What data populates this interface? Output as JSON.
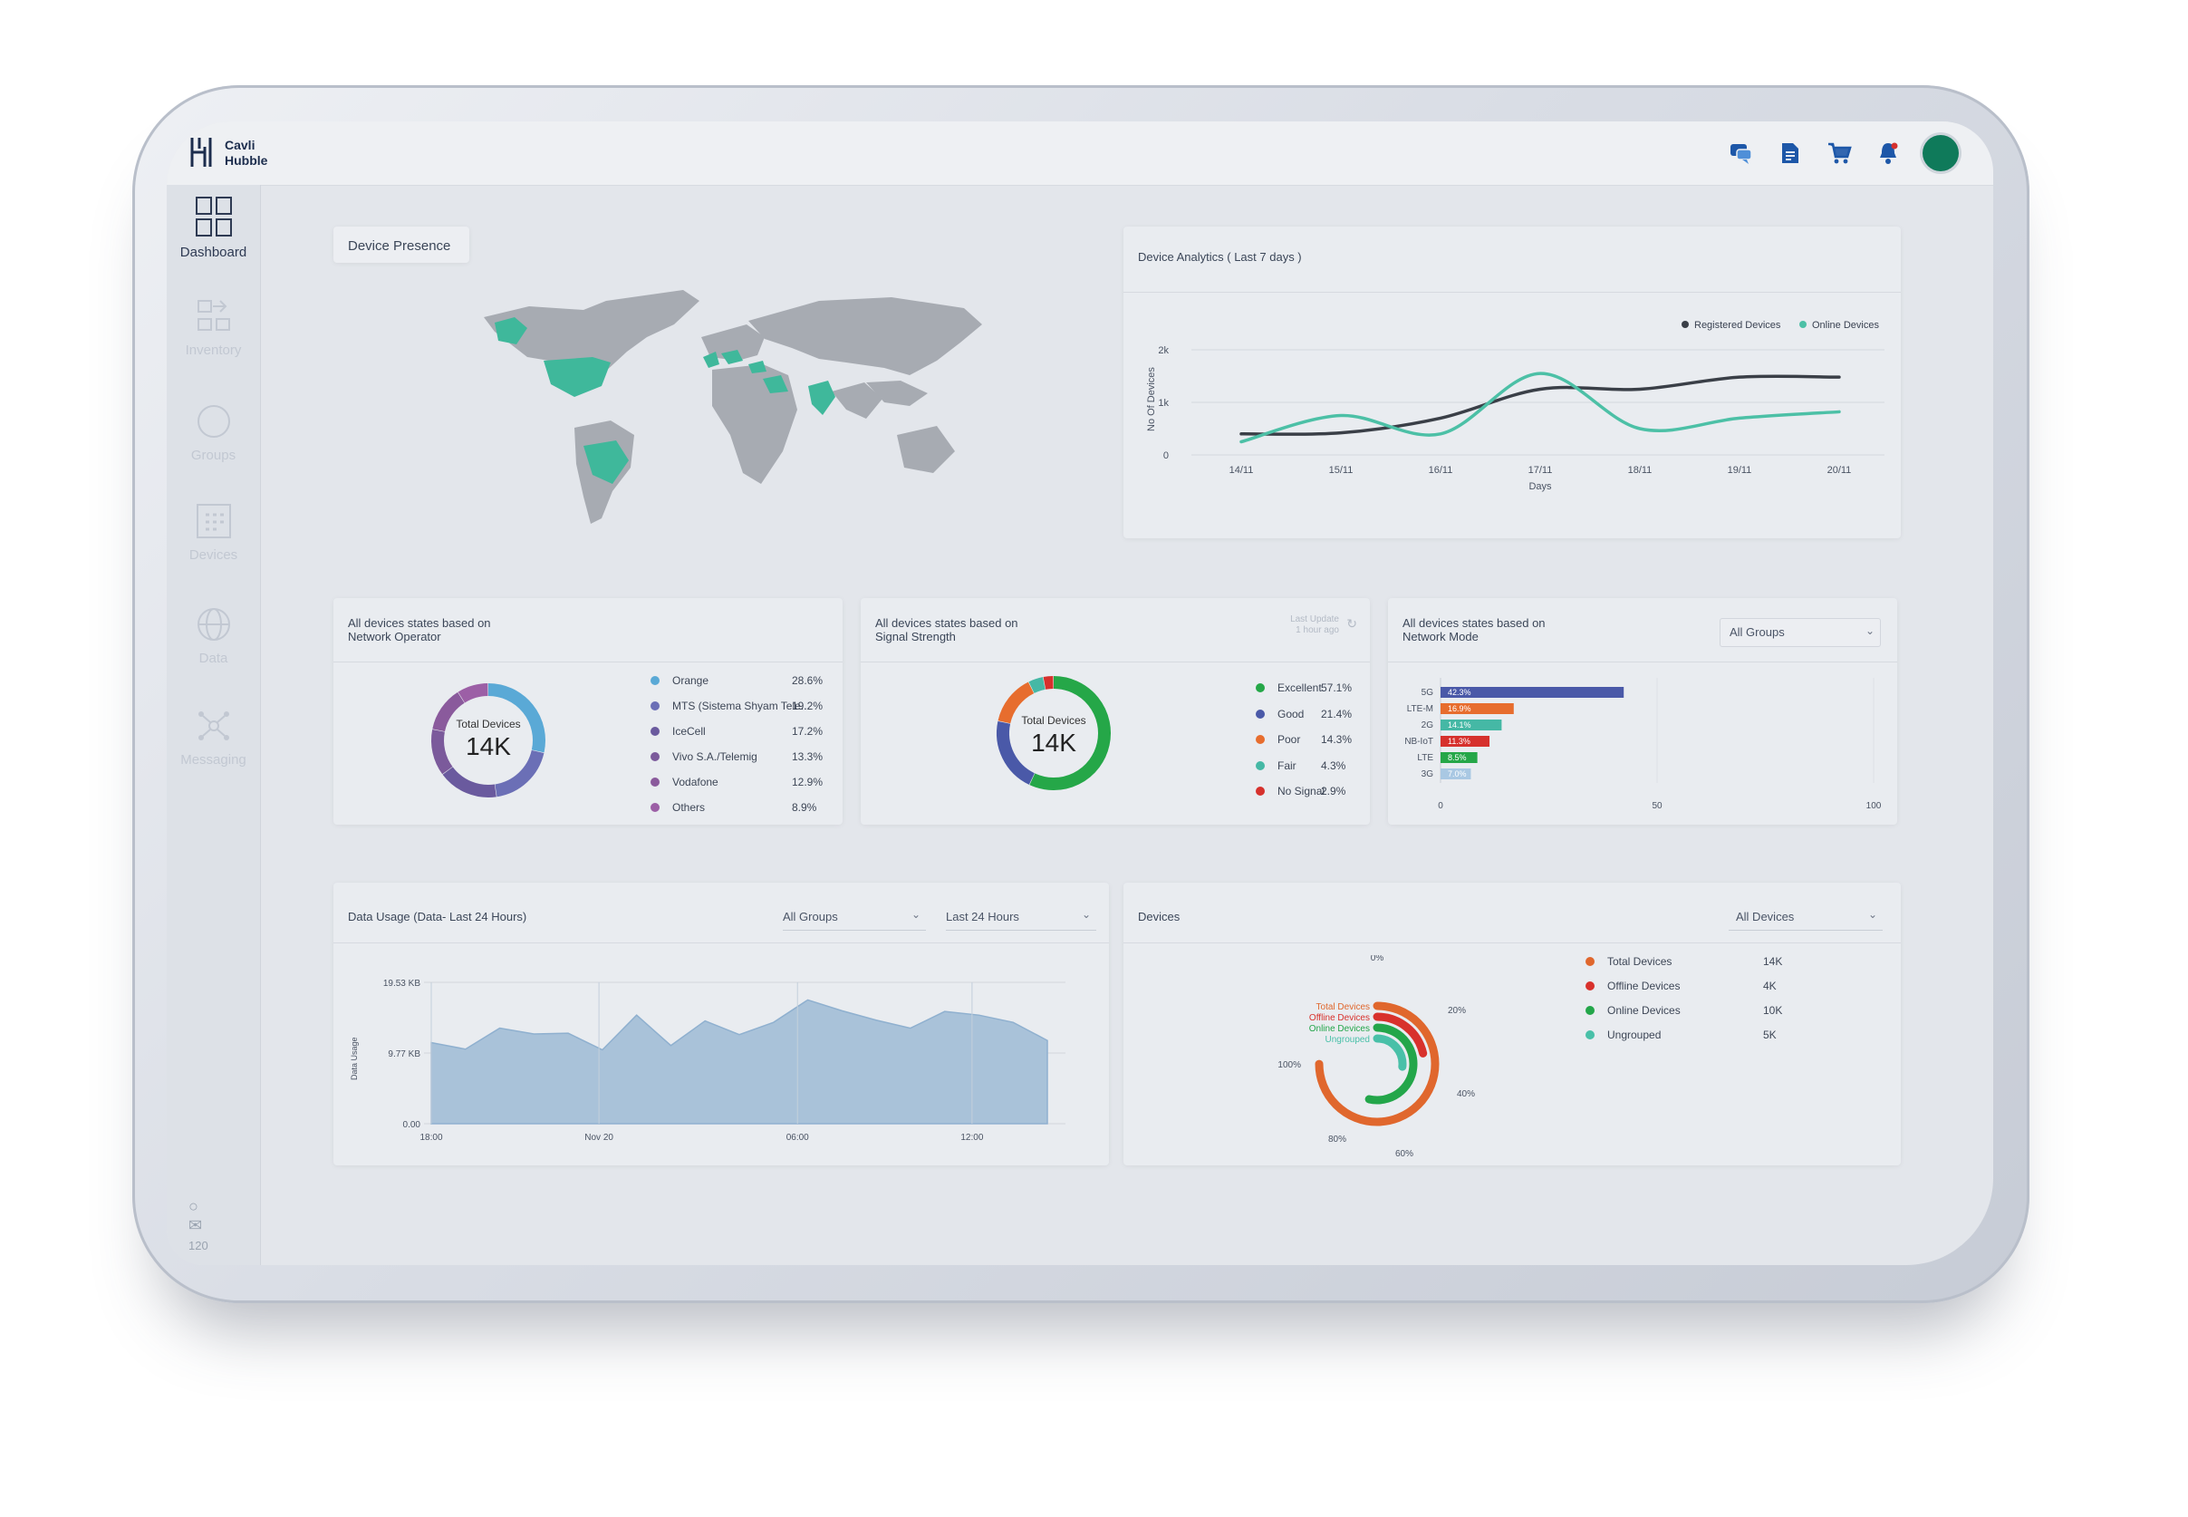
{
  "app": {
    "name_line1": "Cavli",
    "name_line2": "Hubble"
  },
  "topbar": {
    "icons": [
      "chat-icon",
      "document-icon",
      "cart-icon",
      "bell-icon"
    ],
    "accent": "#0f7a5a"
  },
  "sidebar": {
    "items": [
      {
        "label": "Dashboard",
        "icon": "dashboard-icon",
        "active": true
      },
      {
        "label": "Inventory",
        "icon": "inventory-icon"
      },
      {
        "label": "Groups",
        "icon": "groups-icon"
      },
      {
        "label": "Devices",
        "icon": "devices-icon"
      },
      {
        "label": "Data",
        "icon": "globe-icon"
      },
      {
        "label": "Messaging",
        "icon": "messaging-icon"
      }
    ],
    "version": "120"
  },
  "presence": {
    "title": "Device Presence",
    "highlight_color": "#3fb89b",
    "base_color": "#a7abb2"
  },
  "analytics": {
    "title": "Device Analytics ( Last 7 days )",
    "legend": [
      "Registered Devices",
      "Online Devices"
    ]
  },
  "operator": {
    "title_line1": "All devices states based on",
    "title_line2": "Network Operator",
    "center_label": "Total Devices",
    "center_value": "14K"
  },
  "signal": {
    "title_line1": "All devices states based on",
    "title_line2": "Signal Strength",
    "last_update_line1": "Last Update",
    "last_update_line2": "1 hour ago",
    "center_label": "Total Devices",
    "center_value": "14K"
  },
  "mode": {
    "title_line1": "All devices states based on",
    "title_line2": "Network Mode",
    "select": "All Groups"
  },
  "usage": {
    "title": "Data Usage (Data- Last 24 Hours)",
    "select_group": "All Groups",
    "select_range": "Last 24 Hours"
  },
  "devices": {
    "title": "Devices",
    "select": "All Devices",
    "legend": [
      {
        "label": "Total Devices",
        "value": "14K",
        "color": "#e0672d"
      },
      {
        "label": "Offline Devices",
        "value": "4K",
        "color": "#d8312c"
      },
      {
        "label": "Online Devices",
        "value": "10K",
        "color": "#23a64a"
      },
      {
        "label": "Ungrouped",
        "value": "5K",
        "color": "#49c0a8"
      }
    ]
  },
  "chart_data": [
    {
      "type": "line",
      "title": "Device Analytics ( Last 7 days )",
      "xlabel": "Days",
      "ylabel": "No Of Devices",
      "categories": [
        "14/11",
        "15/11",
        "16/11",
        "17/11",
        "18/11",
        "19/11",
        "20/11"
      ],
      "y_ticks": [
        "0",
        "1k",
        "2k"
      ],
      "ylim": [
        0,
        2000
      ],
      "legend_position": "top-right",
      "series": [
        {
          "name": "Registered Devices",
          "color": "#3a3f47",
          "values": [
            400,
            420,
            700,
            1250,
            1250,
            1480,
            1480
          ]
        },
        {
          "name": "Online Devices",
          "color": "#4cc0a6",
          "values": [
            250,
            750,
            400,
            1550,
            500,
            700,
            820
          ]
        }
      ]
    },
    {
      "type": "pie",
      "title": "Network Operator",
      "labels": [
        "Orange",
        "MTS (Sistema Shyam Tele...",
        "IceCell",
        "Vivo S.A./Telemig",
        "Vodafone",
        "Others"
      ],
      "values": [
        28.6,
        19.2,
        17.2,
        13.3,
        12.9,
        8.9
      ],
      "value_labels": [
        "28.6%",
        "19.2%",
        "17.2%",
        "13.3%",
        "12.9%",
        "8.9%"
      ],
      "colors": [
        "#5aa9d6",
        "#6b6fb6",
        "#6a5a9e",
        "#7b5a9b",
        "#8a5a9c",
        "#9c5fa6"
      ]
    },
    {
      "type": "pie",
      "title": "Signal Strength",
      "labels": [
        "Excellent",
        "Good",
        "Poor",
        "Fair",
        "No Signal"
      ],
      "values": [
        57.1,
        21.4,
        14.3,
        4.3,
        2.9
      ],
      "value_labels": [
        "57.1%",
        "21.4%",
        "14.3%",
        "4.3%",
        "2.9%"
      ],
      "colors": [
        "#25a748",
        "#4a59a8",
        "#e76d2e",
        "#45b8a5",
        "#d6312d"
      ]
    },
    {
      "type": "bar",
      "title": "Network Mode",
      "categories": [
        "5G",
        "LTE-M",
        "2G",
        "NB-IoT",
        "LTE",
        "3G"
      ],
      "values": [
        42.3,
        16.9,
        14.1,
        11.3,
        8.5,
        7.0
      ],
      "value_labels": [
        "42.3%",
        "16.9%",
        "14.1%",
        "11.3%",
        "8.5%",
        "7.0%"
      ],
      "colors": [
        "#4a59a8",
        "#e76d2e",
        "#45b8a5",
        "#d6312d",
        "#25a748",
        "#a9c8e3"
      ],
      "x_ticks": [
        "0",
        "50",
        "100"
      ],
      "xlim": [
        0,
        100
      ]
    },
    {
      "type": "area",
      "title": "Data Usage (Data- Last 24 Hours)",
      "ylabel": "Data Usage",
      "y_ticks": [
        "0.00",
        "9.77 KB",
        "19.53 KB"
      ],
      "x_ticks": [
        "18:00",
        "Nov 20",
        "06:00",
        "12:00"
      ],
      "ylim": [
        0,
        19.53
      ],
      "values": [
        11.2,
        10.3,
        13.2,
        12.4,
        12.5,
        10.2,
        15.0,
        10.8,
        14.2,
        12.3,
        14.0,
        17.1,
        15.6,
        14.3,
        13.2,
        15.5,
        15.0,
        14.0,
        11.5
      ],
      "color": "#a9c2d9"
    },
    {
      "type": "pie",
      "title": "Devices",
      "labels": [
        "Total Devices",
        "Offline Devices",
        "Online Devices",
        "Ungrouped"
      ],
      "values": [
        14,
        4,
        10,
        5
      ],
      "ring_labels": [
        "0%",
        "20%",
        "40%",
        "60%",
        "80%",
        "100%"
      ],
      "colors": [
        "#e0672d",
        "#d8312c",
        "#23a64a",
        "#49c0a8"
      ]
    }
  ]
}
